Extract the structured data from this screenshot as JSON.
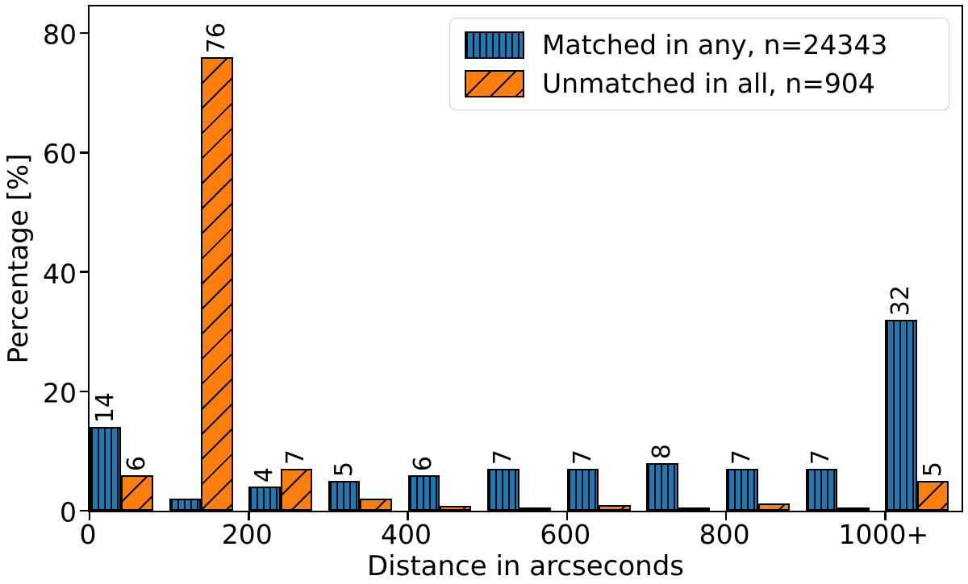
{
  "chart_data": {
    "type": "bar",
    "title": "",
    "xlabel": "Distance in arcseconds",
    "ylabel": "Percentage [%]",
    "ylim": [
      0,
      85
    ],
    "yticks": [
      0,
      20,
      40,
      60,
      80
    ],
    "xtick_labels": [
      "0",
      "200",
      "400",
      "600",
      "800",
      "1000+"
    ],
    "bin_width_arcsec": 100,
    "categories": [
      "0-100",
      "100-200",
      "200-300",
      "300-400",
      "400-500",
      "500-600",
      "600-700",
      "700-800",
      "800-900",
      "900-1000",
      "1000+"
    ],
    "grid": false,
    "legend_position": "upper right",
    "series": [
      {
        "name": "Matched in any, n=24343",
        "color": "#1f77b4",
        "hatch": "vertical",
        "values": [
          14,
          2,
          4,
          5,
          6,
          7,
          7,
          8,
          7,
          7,
          32
        ],
        "bar_labels": [
          "14",
          "",
          "4",
          "5",
          "6",
          "7",
          "7",
          "8",
          "7",
          "7",
          "32"
        ]
      },
      {
        "name": "Unmatched in all, n=904",
        "color": "#ff7f0e",
        "hatch": "diagonal",
        "values": [
          6,
          76,
          7,
          2,
          0.8,
          0.5,
          1,
          0.6,
          1.2,
          0.3,
          5
        ],
        "bar_labels": [
          "6",
          "76",
          "7",
          "",
          "",
          "",
          "",
          "",
          "",
          "",
          "5"
        ]
      }
    ],
    "edge_color": "#000000"
  }
}
